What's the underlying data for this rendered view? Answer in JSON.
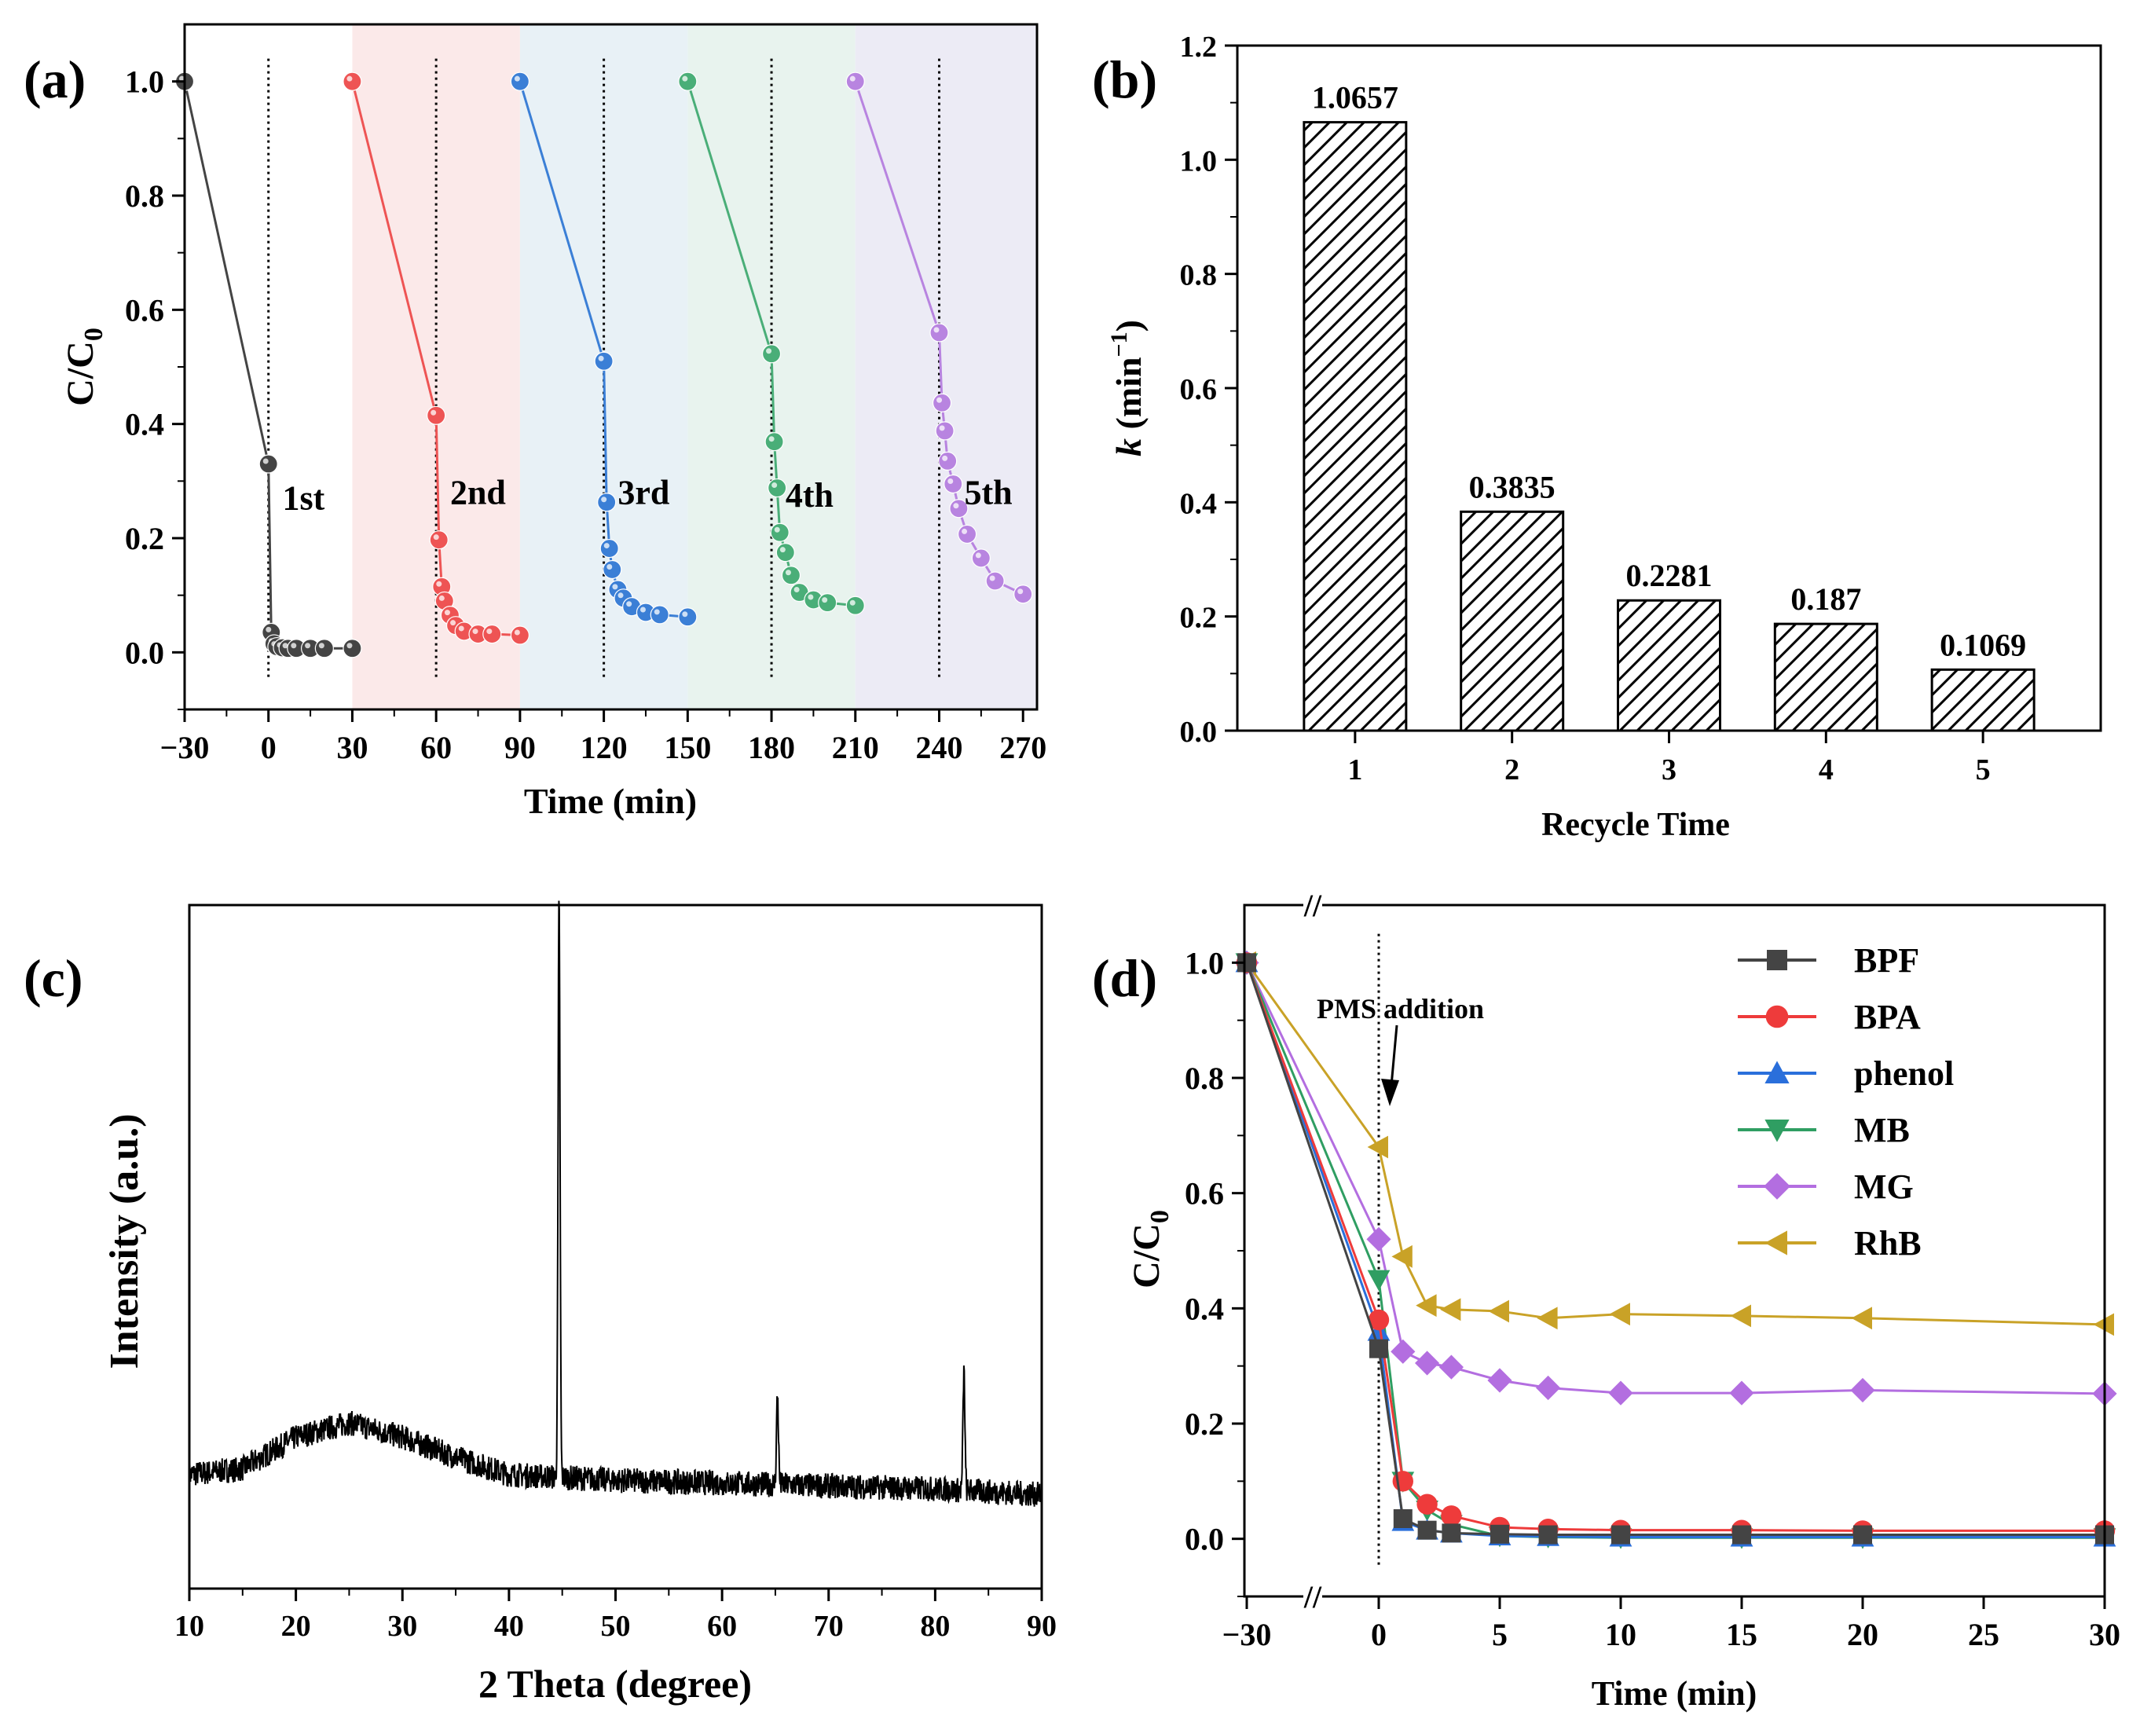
{
  "chart_data": [
    {
      "panel": "a",
      "type": "scatter",
      "panel_label": "(a)",
      "xlabel": "Time (min)",
      "ylabel": "C/C",
      "ylabel_sub": "0",
      "xlim": [
        -30,
        275
      ],
      "ylim": [
        -0.1,
        1.1
      ],
      "xticks": [
        "−30",
        "0",
        "30",
        "60",
        "90",
        "120",
        "150",
        "180",
        "210",
        "240",
        "270"
      ],
      "xtick_values": [
        -30,
        0,
        30,
        60,
        90,
        120,
        150,
        180,
        210,
        240,
        270
      ],
      "yticks": [
        "0.0",
        "0.2",
        "0.4",
        "0.6",
        "0.8",
        "1.0"
      ],
      "ytick_values": [
        0,
        0.2,
        0.4,
        0.6,
        0.8,
        1.0
      ],
      "shaded_regions": [
        {
          "x0": 30,
          "x1": 90,
          "color": "#fbe9e9"
        },
        {
          "x0": 90,
          "x1": 150,
          "color": "#e8f1f6"
        },
        {
          "x0": 150,
          "x1": 210,
          "color": "#e8f3ee"
        },
        {
          "x0": 210,
          "x1": 275,
          "color": "#ecebf5"
        }
      ],
      "dotted_lines": [
        0,
        60,
        120,
        180,
        240
      ],
      "series": [
        {
          "name": "1st",
          "color": "#444444",
          "label_at": [
            5,
            0.25
          ],
          "x": [
            -30,
            0,
            1,
            2,
            3,
            5,
            7,
            10,
            15,
            20,
            30
          ],
          "y": [
            1.0,
            0.33,
            0.035,
            0.015,
            0.01,
            0.008,
            0.007,
            0.007,
            0.007,
            0.007,
            0.007
          ]
        },
        {
          "name": "2nd",
          "color": "#ee5454",
          "label_at": [
            65,
            0.26
          ],
          "x": [
            30,
            60,
            61,
            62,
            63,
            65,
            67,
            70,
            75,
            80,
            90
          ],
          "y": [
            1.0,
            0.415,
            0.197,
            0.115,
            0.09,
            0.065,
            0.047,
            0.037,
            0.032,
            0.032,
            0.03
          ]
        },
        {
          "name": "3rd",
          "color": "#3b7fd6",
          "label_at": [
            125,
            0.26
          ],
          "x": [
            90,
            120,
            121,
            122,
            123,
            125,
            127,
            130,
            135,
            140,
            150
          ],
          "y": [
            1.0,
            0.51,
            0.263,
            0.182,
            0.145,
            0.11,
            0.095,
            0.08,
            0.07,
            0.066,
            0.062
          ]
        },
        {
          "name": "4th",
          "color": "#4aae78",
          "label_at": [
            185,
            0.255
          ],
          "x": [
            150,
            180,
            181,
            182,
            183,
            185,
            187,
            190,
            195,
            200,
            210
          ],
          "y": [
            1.0,
            0.523,
            0.369,
            0.288,
            0.21,
            0.175,
            0.135,
            0.105,
            0.092,
            0.087,
            0.082
          ]
        },
        {
          "name": "5th",
          "color": "#b884e0",
          "label_at": [
            249,
            0.26
          ],
          "x": [
            210,
            240,
            241,
            242,
            243,
            245,
            247,
            250,
            255,
            260,
            270
          ],
          "y": [
            1.0,
            0.56,
            0.437,
            0.388,
            0.335,
            0.295,
            0.252,
            0.207,
            0.165,
            0.125,
            0.102
          ]
        }
      ]
    },
    {
      "panel": "b",
      "type": "bar",
      "panel_label": "(b)",
      "xlabel": "Recycle Time",
      "ylabel_k": "k",
      "ylabel_rest": " (min",
      "ylabel_sup": "−1",
      "ylabel_close": ")",
      "categories": [
        "1",
        "2",
        "3",
        "4",
        "5"
      ],
      "values": [
        1.0657,
        0.3835,
        0.2281,
        0.187,
        0.1069
      ],
      "value_labels": [
        "1.0657",
        "0.3835",
        "0.2281",
        "0.187",
        "0.1069"
      ],
      "ylim": [
        0,
        1.2
      ],
      "yticks": [
        "0.0",
        "0.2",
        "0.4",
        "0.6",
        "0.8",
        "1.0",
        "1.2"
      ],
      "ytick_values": [
        0,
        0.2,
        0.4,
        0.6,
        0.8,
        1.0,
        1.2
      ],
      "pattern": "diagonal-hatch"
    },
    {
      "panel": "c",
      "type": "line",
      "panel_label": "(c)",
      "xlabel": "2 Theta (degree)",
      "ylabel": "Intensity (a.u.)",
      "xlim": [
        10,
        90
      ],
      "xticks": [
        "10",
        "20",
        "30",
        "40",
        "50",
        "60",
        "70",
        "80",
        "90"
      ],
      "xtick_values": [
        10,
        20,
        30,
        40,
        50,
        60,
        70,
        80,
        90
      ],
      "ylim": [
        0,
        1
      ],
      "baseline": [
        [
          10,
          0.1
        ],
        [
          15,
          0.11
        ],
        [
          20,
          0.165
        ],
        [
          25,
          0.19
        ],
        [
          30,
          0.165
        ],
        [
          35,
          0.13
        ],
        [
          40,
          0.1
        ],
        [
          50,
          0.09
        ],
        [
          60,
          0.085
        ],
        [
          70,
          0.08
        ],
        [
          80,
          0.075
        ],
        [
          90,
          0.065
        ]
      ],
      "peaks": [
        {
          "x": 44.7,
          "height": 1.0
        },
        {
          "x": 65.2,
          "height": 0.155
        },
        {
          "x": 82.7,
          "height": 0.205
        }
      ],
      "noise": 0.022
    },
    {
      "panel": "d",
      "type": "line",
      "panel_label": "(d)",
      "xlabel": "Time (min)",
      "ylabel": "C/C",
      "ylabel_sub": "0",
      "ylim": [
        -0.1,
        1.1
      ],
      "yticks": [
        "0.0",
        "0.2",
        "0.4",
        "0.6",
        "0.8",
        "1.0"
      ],
      "ytick_values": [
        0,
        0.2,
        0.4,
        0.6,
        0.8,
        1.0
      ],
      "xticks": [
        "−30",
        "0",
        "5",
        "10",
        "15",
        "20",
        "25",
        "30"
      ],
      "xtick_values": [
        -30,
        0,
        5,
        10,
        15,
        20,
        25,
        30
      ],
      "axis_break": "//",
      "annotation": "PMS addition",
      "series": [
        {
          "name": "BPF",
          "color": "#444444",
          "marker": "square",
          "x": [
            -30,
            0,
            1,
            2,
            3,
            5,
            7,
            10,
            15,
            20,
            30
          ],
          "y": [
            1.0,
            0.33,
            0.035,
            0.015,
            0.01,
            0.008,
            0.007,
            0.007,
            0.007,
            0.007,
            0.007
          ]
        },
        {
          "name": "BPA",
          "color": "#ee3b3b",
          "marker": "circle",
          "x": [
            -30,
            0,
            1,
            2,
            3,
            5,
            7,
            10,
            15,
            20,
            30
          ],
          "y": [
            1.0,
            0.38,
            0.1,
            0.06,
            0.04,
            0.02,
            0.017,
            0.015,
            0.015,
            0.014,
            0.014
          ]
        },
        {
          "name": "phenol",
          "color": "#2a6fdb",
          "marker": "triangle-up",
          "x": [
            -30,
            0,
            1,
            2,
            3,
            5,
            7,
            10,
            15,
            20,
            30
          ],
          "y": [
            1.0,
            0.36,
            0.03,
            0.015,
            0.01,
            0.005,
            0.004,
            0.003,
            0.003,
            0.003,
            0.003
          ]
        },
        {
          "name": "MB",
          "color": "#2f9e62",
          "marker": "triangle-down",
          "x": [
            -30,
            0,
            1,
            2,
            3,
            5,
            7,
            10,
            15,
            20,
            30
          ],
          "y": [
            1.0,
            0.45,
            0.1,
            0.05,
            0.025,
            0.005,
            0.003,
            0.002,
            0.002,
            0.002,
            0.002
          ]
        },
        {
          "name": "MG",
          "color": "#b36ee0",
          "marker": "diamond",
          "x": [
            -30,
            0,
            1,
            2,
            3,
            5,
            7,
            10,
            15,
            20,
            30
          ],
          "y": [
            1.0,
            0.52,
            0.325,
            0.305,
            0.298,
            0.275,
            0.262,
            0.253,
            0.253,
            0.258,
            0.252
          ]
        },
        {
          "name": "RhB",
          "color": "#c9a227",
          "marker": "triangle-left",
          "x": [
            -30,
            0,
            1,
            2,
            3,
            5,
            7,
            10,
            15,
            20,
            30
          ],
          "y": [
            1.0,
            0.68,
            0.49,
            0.405,
            0.398,
            0.395,
            0.383,
            0.39,
            0.387,
            0.383,
            0.372
          ]
        }
      ]
    }
  ]
}
